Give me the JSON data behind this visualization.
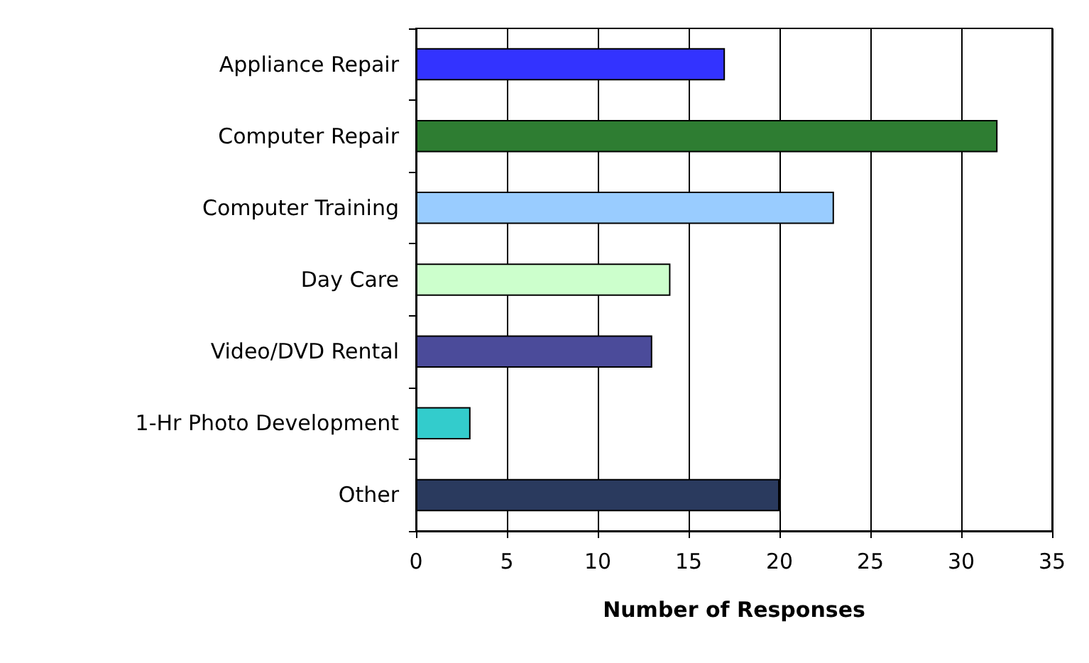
{
  "chart_data": {
    "type": "bar",
    "orientation": "horizontal",
    "xlabel": "Number of Responses",
    "categories": [
      "Appliance Repair",
      "Computer Repair",
      "Computer Training",
      "Day Care",
      "Video/DVD Rental",
      "1-Hr Photo Development",
      "Other"
    ],
    "values": [
      17,
      32,
      23,
      14,
      13,
      3,
      20
    ],
    "colors": [
      "#3333ff",
      "#2e7d32",
      "#99ccff",
      "#ccffcc",
      "#4b4b9a",
      "#33cccc",
      "#2a3a5e"
    ],
    "xlim": [
      0,
      35
    ],
    "xticks": [
      0,
      5,
      10,
      15,
      20,
      25,
      30,
      35
    ],
    "grid": "x"
  }
}
